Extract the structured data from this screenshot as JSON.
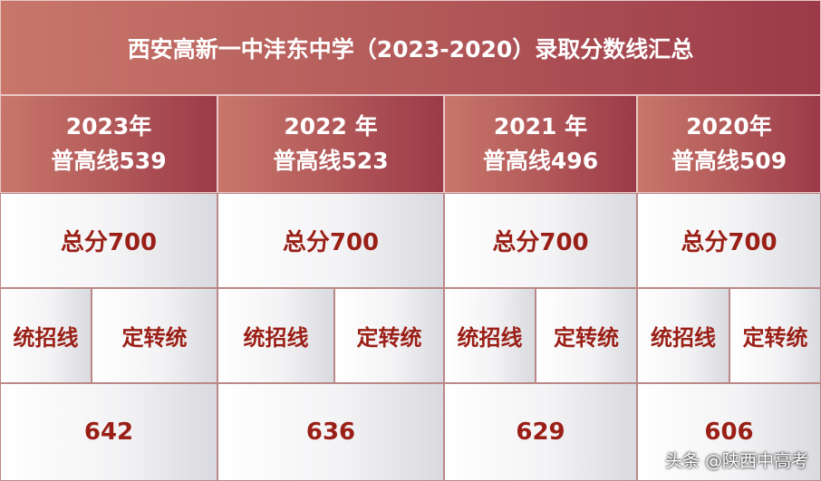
{
  "title": "西安高新一中沣东中学（2023-2020）录取分数线汇总",
  "columns": [
    {
      "year": "2023年",
      "line": "普高线539",
      "total": "总分700",
      "subheaders": [
        "统招线",
        "定转统"
      ],
      "value": 642
    },
    {
      "year": "2022 年",
      "line": "普高线523",
      "total": "总分700",
      "subheaders": [
        "统招线",
        "定转统"
      ],
      "value": 636
    },
    {
      "year": "2021 年",
      "line": "普高线496",
      "total": "总分700",
      "subheaders": [
        "统招线",
        "定转统"
      ],
      "value": 629
    },
    {
      "year": "2020年",
      "line": "普高线509",
      "total": "总分700",
      "subheaders": [
        "统招线",
        "定转统"
      ],
      "value": 606
    }
  ],
  "watermark": "头条 @陕西中高考"
}
